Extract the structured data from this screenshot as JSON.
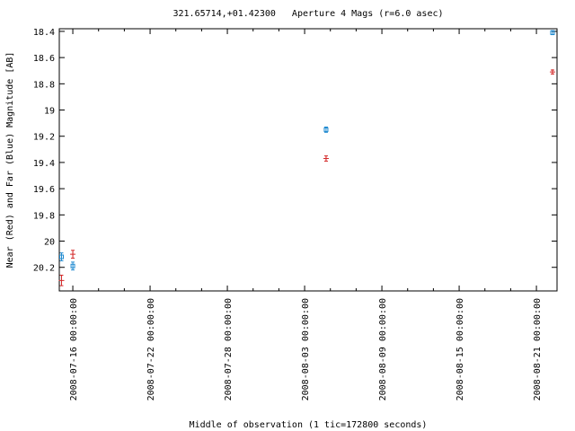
{
  "chart_data": {
    "type": "scatter",
    "title": "321.65714,+01.42300   Aperture 4 Mags (r=6.0 asec)",
    "x_label": "Middle of observation (1 tic=172800 seconds)",
    "y_label": "Near (Red) and Far (Blue) Magnitude [AB]",
    "x_scale": "time",
    "y_inverted": true,
    "xlim": [
      "2008-07-14 22:48:00",
      "2008-08-22 14:24:00"
    ],
    "xticks": [
      "2008-07-16 00:00:00",
      "2008-07-22 00:00:00",
      "2008-07-28 00:00:00",
      "2008-08-03 00:00:00",
      "2008-08-09 00:00:00",
      "2008-08-15 00:00:00",
      "2008-08-21 00:00:00"
    ],
    "ylim": [
      20.38,
      18.38
    ],
    "yticks": [
      18.4,
      18.6,
      18.8,
      19,
      19.2,
      19.4,
      19.6,
      19.8,
      20,
      20.2
    ],
    "series": [
      {
        "color": "#d42a2a",
        "x": [
          "2008-07-15 03:00:00",
          "2008-07-16 00:00:00",
          "2008-08-04 16:00:00",
          "2008-08-22 06:00:00"
        ],
        "values": [
          20.3,
          20.1,
          19.37,
          18.71
        ],
        "errors": [
          0.04,
          0.03,
          0.02,
          0.015
        ]
      },
      {
        "color": "#1f8ad0",
        "x": [
          "2008-07-15 03:00:00",
          "2008-07-16 00:00:00",
          "2008-08-04 16:00:00",
          "2008-08-22 06:00:00"
        ],
        "values": [
          20.12,
          20.19,
          19.15,
          18.41
        ],
        "errors": [
          0.03,
          0.03,
          0.02,
          0.015
        ]
      }
    ]
  }
}
